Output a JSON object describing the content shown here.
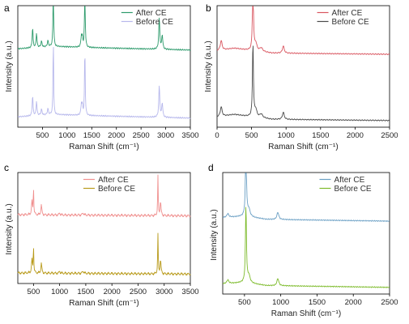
{
  "chart_data": [
    {
      "type": "line",
      "panel_label": "a",
      "xlabel": "Raman Shift (cm⁻¹)",
      "ylabel": "Intensity (a.u.)",
      "xlim": [
        0,
        3500
      ],
      "xticks": [
        "500",
        "1000",
        "1500",
        "2000",
        "2500",
        "3000",
        "3500"
      ],
      "legend_position": "top-right",
      "series": [
        {
          "name": "After CE",
          "color": "#2e9b6c",
          "baseline": 0.615,
          "noise": 0.004,
          "background": [
            [
              0,
              0.03
            ],
            [
              700,
              0.05
            ],
            [
              1500,
              0.04
            ],
            [
              3500,
              0.02
            ]
          ],
          "peaks": [
            [
              300,
              0.17,
              10
            ],
            [
              380,
              0.12,
              10
            ],
            [
              480,
              0.05,
              12
            ],
            [
              610,
              0.05,
              12
            ],
            [
              720,
              0.66,
              7
            ],
            [
              1290,
              0.09,
              12
            ],
            [
              1310,
              0.07,
              10
            ],
            [
              1360,
              0.57,
              8
            ],
            [
              2870,
              0.26,
              12
            ],
            [
              2930,
              0.12,
              12
            ]
          ]
        },
        {
          "name": "Before CE",
          "color": "#b7b8ec",
          "baseline": 0.055,
          "noise": 0.004,
          "background": [
            [
              0,
              0.03
            ],
            [
              700,
              0.05
            ],
            [
              1500,
              0.04
            ],
            [
              3500,
              0.02
            ]
          ],
          "peaks": [
            [
              300,
              0.17,
              10
            ],
            [
              380,
              0.12,
              10
            ],
            [
              480,
              0.05,
              12
            ],
            [
              610,
              0.05,
              12
            ],
            [
              720,
              0.66,
              7
            ],
            [
              1290,
              0.09,
              12
            ],
            [
              1310,
              0.07,
              10
            ],
            [
              1360,
              0.57,
              8
            ],
            [
              2870,
              0.26,
              12
            ],
            [
              2930,
              0.12,
              12
            ]
          ]
        }
      ]
    },
    {
      "type": "line",
      "panel_label": "b",
      "xlabel": "Raman Shift (cm⁻¹)",
      "ylabel": "Intensity (a.u.)",
      "xlim": [
        0,
        2500
      ],
      "xticks": [
        "0",
        "500",
        "1000",
        "1500",
        "2000",
        "2500"
      ],
      "legend_position": "top-right",
      "series": [
        {
          "name": "After CE",
          "color": "#d9555f",
          "baseline": 0.6,
          "noise": 0.003,
          "background": [
            [
              0,
              0.03
            ],
            [
              250,
              0.05
            ],
            [
              500,
              0.03
            ],
            [
              800,
              0.01
            ],
            [
              2500,
              0.0
            ]
          ],
          "peaks": [
            [
              60,
              0.08,
              15
            ],
            [
              520,
              0.62,
              8
            ],
            [
              560,
              0.06,
              20
            ],
            [
              640,
              0.03,
              25
            ],
            [
              960,
              0.06,
              15
            ]
          ]
        },
        {
          "name": "Before CE",
          "color": "#4a4a4a",
          "baseline": 0.055,
          "noise": 0.003,
          "background": [
            [
              0,
              0.03
            ],
            [
              250,
              0.05
            ],
            [
              500,
              0.03
            ],
            [
              800,
              0.01
            ],
            [
              2500,
              0.0
            ]
          ],
          "peaks": [
            [
              60,
              0.08,
              15
            ],
            [
              520,
              0.62,
              8
            ],
            [
              560,
              0.06,
              20
            ],
            [
              640,
              0.03,
              25
            ],
            [
              960,
              0.06,
              15
            ]
          ]
        }
      ]
    },
    {
      "type": "line",
      "panel_label": "c",
      "xlabel": "Raman Shift (cm⁻¹)",
      "ylabel": "Intensity (a.u.)",
      "xlim": [
        200,
        3500
      ],
      "xticks": [
        "500",
        "1000",
        "1500",
        "2000",
        "2500",
        "3000",
        "3500"
      ],
      "legend_position": "top-center",
      "series": [
        {
          "name": "After CE",
          "color": "#f0908f",
          "baseline": 0.6,
          "noise": 0.008,
          "background": [
            [
              200,
              0.02
            ],
            [
              3500,
              0.01
            ]
          ],
          "peaks": [
            [
              470,
              0.12,
              10
            ],
            [
              500,
              0.25,
              6
            ],
            [
              650,
              0.09,
              10
            ],
            [
              1000,
              0.02,
              10
            ],
            [
              1450,
              0.02,
              15
            ],
            [
              2880,
              0.36,
              6
            ],
            [
              2930,
              0.13,
              10
            ]
          ]
        },
        {
          "name": "Before CE",
          "color": "#b99b1c",
          "baseline": 0.075,
          "noise": 0.008,
          "background": [
            [
              200,
              0.02
            ],
            [
              3500,
              0.01
            ]
          ],
          "peaks": [
            [
              470,
              0.12,
              10
            ],
            [
              500,
              0.25,
              6
            ],
            [
              650,
              0.09,
              10
            ],
            [
              1000,
              0.02,
              10
            ],
            [
              1450,
              0.02,
              15
            ],
            [
              2880,
              0.36,
              6
            ],
            [
              2930,
              0.13,
              10
            ]
          ]
        }
      ]
    },
    {
      "type": "line",
      "panel_label": "d",
      "xlabel": "Raman Shift (cm⁻¹)",
      "ylabel": "Intensity (a.u.)",
      "xlim": [
        200,
        2500
      ],
      "xticks": [
        "500",
        "1000",
        "1500",
        "2000",
        "2500"
      ],
      "legend_position": "top-right",
      "series": [
        {
          "name": "After CE",
          "color": "#6a9fc4",
          "baseline": 0.6,
          "noise": 0.003,
          "background": [
            [
              200,
              0.03
            ],
            [
              500,
              0.04
            ],
            [
              800,
              0.015
            ],
            [
              2500,
              0.0
            ]
          ],
          "peaks": [
            [
              270,
              0.03,
              15
            ],
            [
              520,
              0.64,
              8
            ],
            [
              560,
              0.06,
              20
            ],
            [
              960,
              0.06,
              15
            ]
          ]
        },
        {
          "name": "Before CE",
          "color": "#7dbb2b",
          "baseline": 0.055,
          "noise": 0.003,
          "background": [
            [
              200,
              0.03
            ],
            [
              500,
              0.04
            ],
            [
              800,
              0.015
            ],
            [
              2500,
              0.0
            ]
          ],
          "peaks": [
            [
              270,
              0.03,
              15
            ],
            [
              520,
              0.64,
              8
            ],
            [
              560,
              0.06,
              20
            ],
            [
              960,
              0.06,
              15
            ]
          ]
        }
      ]
    }
  ]
}
